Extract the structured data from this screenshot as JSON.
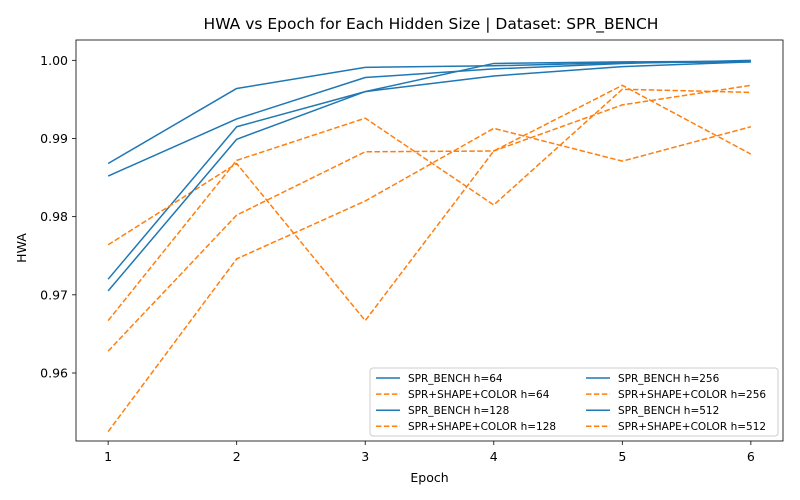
{
  "chart_data": {
    "type": "line",
    "title": "HWA vs Epoch for Each Hidden Size | Dataset: SPR_BENCH",
    "xlabel": "Epoch",
    "ylabel": "HWA",
    "x": [
      1,
      2,
      3,
      4,
      5,
      6
    ],
    "xticks": [
      "1",
      "2",
      "3",
      "4",
      "5",
      "6"
    ],
    "yticks": [
      0.96,
      0.97,
      0.98,
      0.99,
      1.0
    ],
    "ytick_labels": [
      "0.96",
      "0.97",
      "0.98",
      "0.99",
      "1.00"
    ],
    "xlim": [
      0.75,
      6.25
    ],
    "ylim": [
      0.9513,
      1.0026
    ],
    "grid": false,
    "legend_location": "lower right",
    "legend_columns": 2,
    "colors": {
      "solid": "#1f77b4",
      "dashed": "#ff7f0e"
    },
    "series": [
      {
        "name": "SPR_BENCH h=64",
        "style": "solid",
        "values": [
          0.972,
          0.9915,
          0.996,
          0.998,
          0.9992,
          0.9998
        ]
      },
      {
        "name": "SPR+SHAPE+COLOR h=64",
        "style": "dashed",
        "values": [
          0.9667,
          0.9872,
          0.9926,
          0.9815,
          0.9963,
          0.9959
        ]
      },
      {
        "name": "SPR_BENCH h=128",
        "style": "solid",
        "values": [
          0.9868,
          0.9964,
          0.9991,
          0.9993,
          0.9997,
          0.9998
        ]
      },
      {
        "name": "SPR+SHAPE+COLOR h=128",
        "style": "dashed",
        "values": [
          0.9764,
          0.9868,
          0.9667,
          0.9884,
          0.9968,
          0.988
        ]
      },
      {
        "name": "SPR_BENCH h=256",
        "style": "solid",
        "values": [
          0.9705,
          0.9899,
          0.996,
          0.9996,
          0.9998,
          0.9999
        ]
      },
      {
        "name": "SPR+SHAPE+COLOR h=256",
        "style": "dashed",
        "values": [
          0.9525,
          0.9746,
          0.982,
          0.9913,
          0.9871,
          0.9915
        ]
      },
      {
        "name": "SPR_BENCH h=512",
        "style": "solid",
        "values": [
          0.9852,
          0.9925,
          0.9978,
          0.9989,
          0.9996,
          1.0
        ]
      },
      {
        "name": "SPR+SHAPE+COLOR h=512",
        "style": "dashed",
        "values": [
          0.9628,
          0.9802,
          0.9883,
          0.9884,
          0.9943,
          0.9968
        ]
      }
    ]
  }
}
